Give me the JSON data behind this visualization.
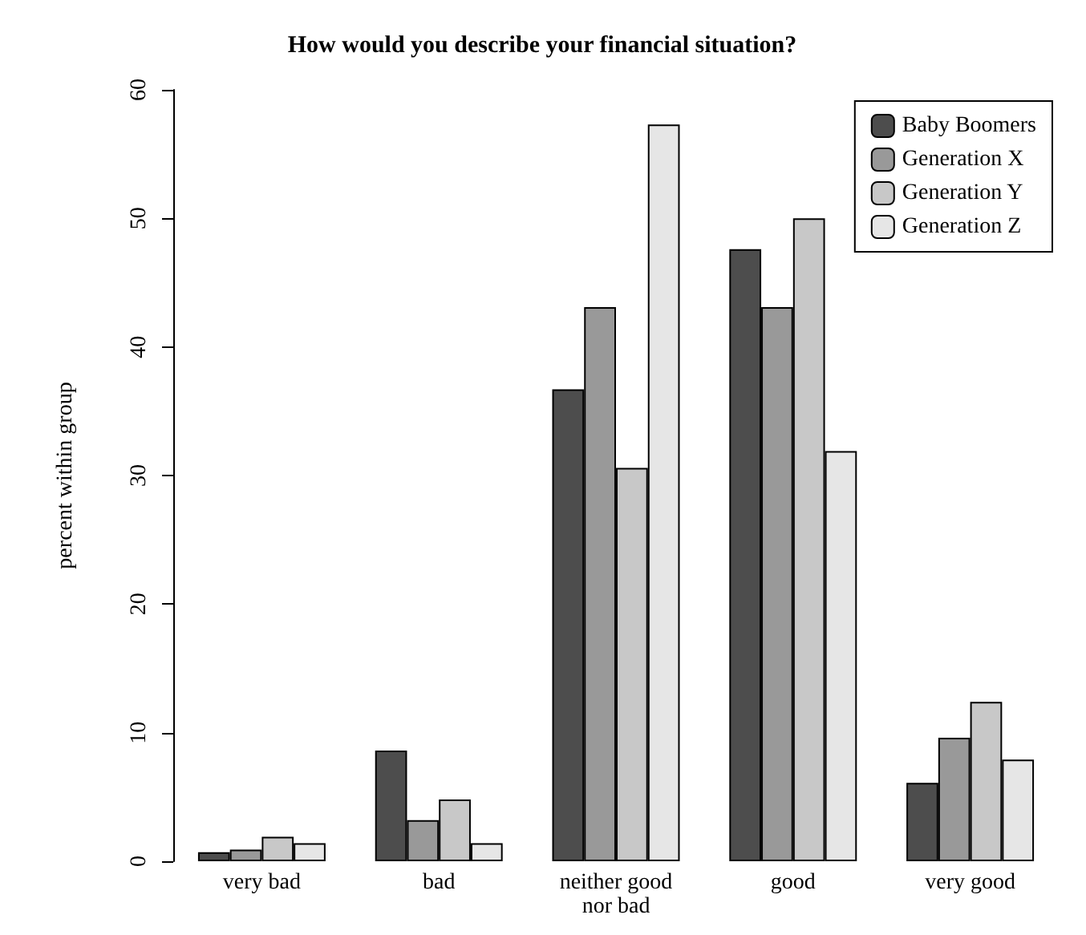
{
  "chart_data": {
    "type": "bar",
    "title": "How would you describe your financial situation?",
    "ylabel": "percent within group",
    "categories": [
      "very bad",
      "bad",
      "neither good\nnor bad",
      "good",
      "very good"
    ],
    "series": [
      {
        "name": "Baby Boomers",
        "color": "#4d4d4d",
        "values": [
          0.7,
          8.6,
          36.7,
          47.6,
          6.1
        ]
      },
      {
        "name": "Generation X",
        "color": "#999999",
        "values": [
          0.9,
          3.2,
          43.1,
          43.1,
          9.6
        ]
      },
      {
        "name": "Generation Y",
        "color": "#c8c8c8",
        "values": [
          1.9,
          4.8,
          30.6,
          50.0,
          12.4
        ]
      },
      {
        "name": "Generation Z",
        "color": "#e6e6e6",
        "values": [
          1.4,
          1.4,
          57.3,
          31.9,
          7.9
        ]
      }
    ],
    "ylim": [
      0,
      60
    ],
    "yticks": [
      0,
      10,
      20,
      30,
      40,
      50,
      60
    ],
    "grid": false,
    "legend": "top right"
  }
}
